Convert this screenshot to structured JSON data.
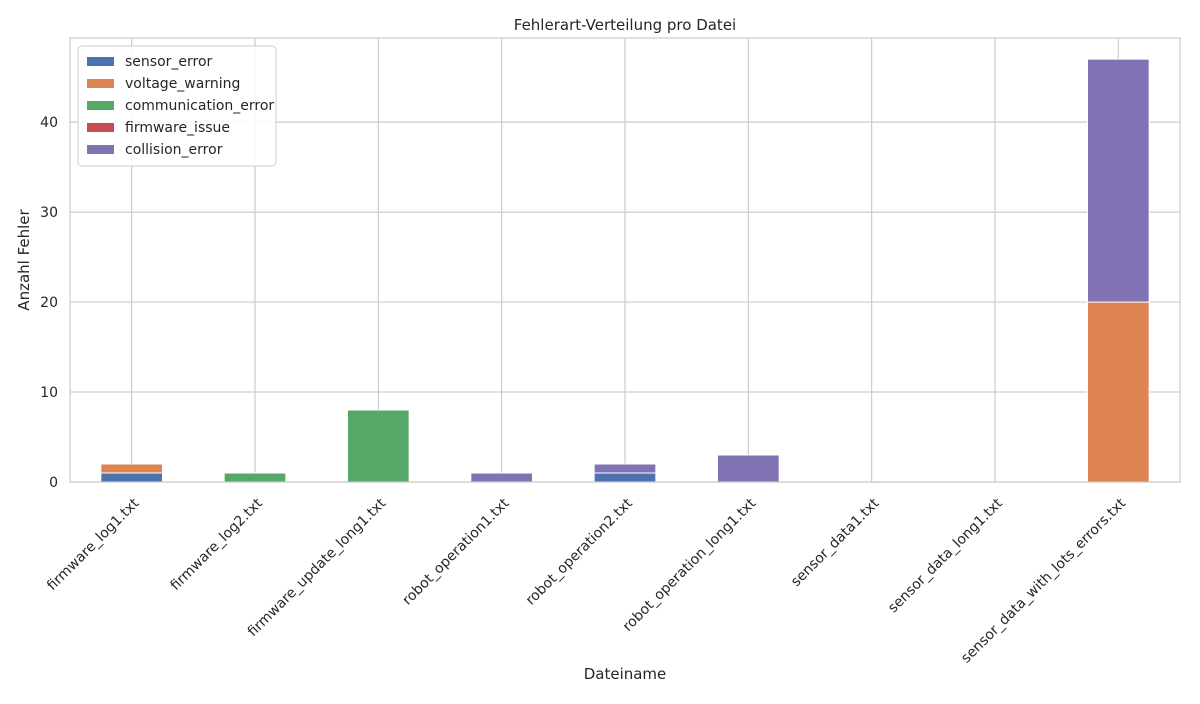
{
  "chart_data": {
    "type": "bar",
    "stacked": true,
    "title": "Fehlerart-Verteilung pro Datei",
    "xlabel": "Dateiname",
    "ylabel": "Anzahl Fehler",
    "ylim": [
      0,
      49.35
    ],
    "yticks": [
      0,
      10,
      20,
      30,
      40
    ],
    "grid": true,
    "legend_position": "top-left",
    "categories": [
      "firmware_log1.txt",
      "firmware_log2.txt",
      "firmware_update_long1.txt",
      "robot_operation1.txt",
      "robot_operation2.txt",
      "robot_operation_long1.txt",
      "sensor_data1.txt",
      "sensor_data_long1.txt",
      "sensor_data_with_lots_errors.txt"
    ],
    "series": [
      {
        "name": "sensor_error",
        "color": "#4c72b0",
        "values": [
          1,
          0,
          0,
          0,
          1,
          0,
          0,
          0,
          0
        ]
      },
      {
        "name": "voltage_warning",
        "color": "#dd8452",
        "values": [
          1,
          0,
          0,
          0,
          0,
          0,
          0,
          0,
          20
        ]
      },
      {
        "name": "communication_error",
        "color": "#55a868",
        "values": [
          0,
          1,
          8,
          0,
          0,
          0,
          0,
          0,
          0
        ]
      },
      {
        "name": "firmware_issue",
        "color": "#c44e52",
        "values": [
          0,
          0,
          0,
          0,
          0,
          0,
          0,
          0,
          0
        ]
      },
      {
        "name": "collision_error",
        "color": "#8172b3",
        "values": [
          0,
          0,
          0,
          1,
          1,
          3,
          0,
          0,
          27
        ]
      }
    ]
  }
}
